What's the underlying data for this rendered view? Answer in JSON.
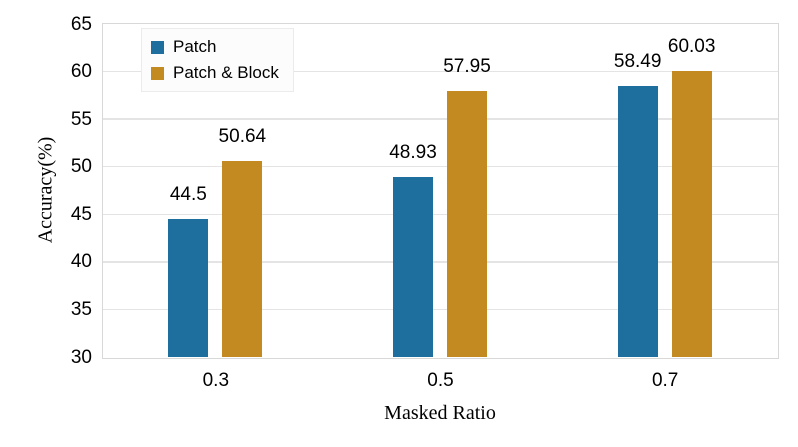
{
  "chart_data": {
    "type": "bar",
    "title": "",
    "categories": [
      "0.3",
      "0.5",
      "0.7"
    ],
    "series": [
      {
        "name": "Patch",
        "color": "#1f6f9e",
        "values": [
          44.5,
          48.93,
          58.49
        ],
        "value_labels": [
          "44.5",
          "48.93",
          "58.49"
        ]
      },
      {
        "name": "Patch & Block",
        "color": "#c48a22",
        "values": [
          50.64,
          57.95,
          60.03
        ],
        "value_labels": [
          "50.64",
          "57.95",
          "60.03"
        ]
      }
    ],
    "xlabel": "Masked Ratio",
    "ylabel": "Accuracy(%)",
    "ylim": [
      30,
      65
    ],
    "yticks": [
      30,
      35,
      40,
      45,
      50,
      55,
      60,
      65
    ],
    "grid": true,
    "legend": {
      "position": "top-left-inside",
      "entries": [
        "Patch",
        "Patch & Block"
      ]
    }
  }
}
